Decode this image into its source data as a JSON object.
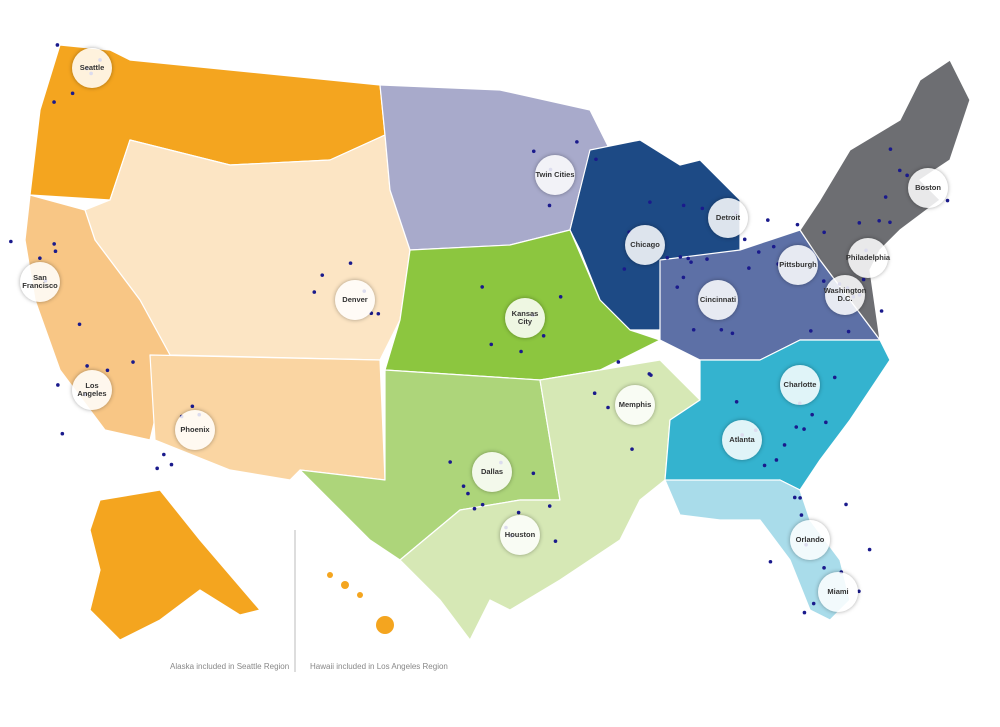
{
  "cities": [
    {
      "label": "Seattle"
    },
    {
      "label": "San Francisco"
    },
    {
      "label": "Los Angeles"
    },
    {
      "label": "Phoenix"
    },
    {
      "label": "Denver"
    },
    {
      "label": "Twin Cities"
    },
    {
      "label": "Chicago"
    },
    {
      "label": "Detroit"
    },
    {
      "label": "Kansas City"
    },
    {
      "label": "Cincinnati"
    },
    {
      "label": "Pittsburgh"
    },
    {
      "label": "Philadelphia"
    },
    {
      "label": "Boston"
    },
    {
      "label": "Washington D.C."
    },
    {
      "label": "Charlotte"
    },
    {
      "label": "Atlanta"
    },
    {
      "label": "Memphis"
    },
    {
      "label": "Dallas"
    },
    {
      "label": "Houston"
    },
    {
      "label": "Orlando"
    },
    {
      "label": "Miami"
    }
  ],
  "notes": [
    "Alaska included in Seattle Region",
    "Hawaii included in Los Angeles Region"
  ]
}
